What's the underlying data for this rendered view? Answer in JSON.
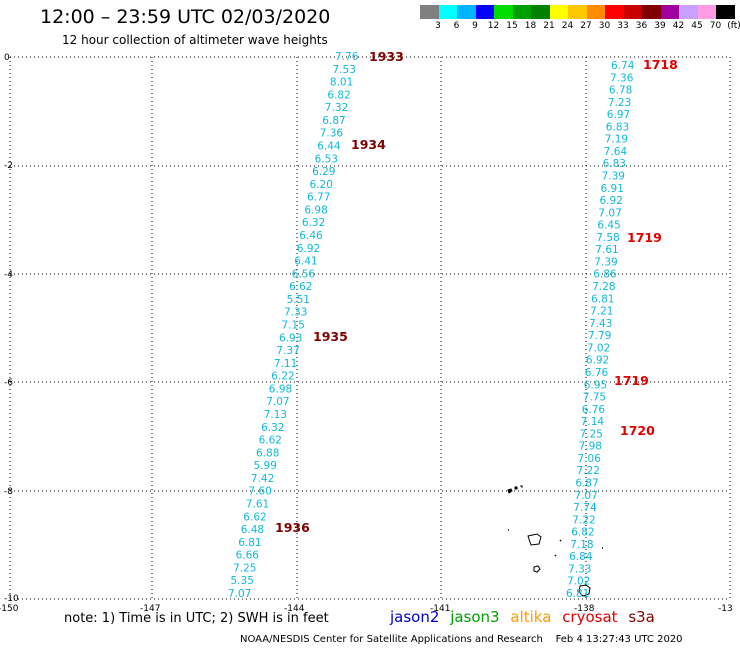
{
  "header": {
    "title": "12:00 – 23:59 UTC 02/03/2020",
    "subtitle": "12 hour collection of altimeter wave heights"
  },
  "scale": {
    "colors": [
      "#808080",
      "#00ffff",
      "#00b4ff",
      "#0000ff",
      "#00dc00",
      "#00a000",
      "#008000",
      "#ffff00",
      "#ffc800",
      "#ff8c00",
      "#ff0000",
      "#c80000",
      "#800000",
      "#a000a0",
      "#c8a0ff",
      "#ff9ce6",
      "#000000"
    ],
    "labels": [
      "3",
      "6",
      "9",
      "12",
      "15",
      "18",
      "21",
      "24",
      "27",
      "30",
      "33",
      "36",
      "39",
      "42",
      "45",
      "70",
      "(ft)"
    ]
  },
  "map_data": {
    "lon_labels": [
      "-150",
      "-147",
      "-144",
      "-141",
      "-138",
      "-13"
    ],
    "lat_labels": [
      "0",
      "-2",
      "-4",
      "-6",
      "-8",
      "-10"
    ],
    "track_west": [
      "7.76",
      "7.53",
      "8.01",
      "6.82",
      "7.32",
      "6.87",
      "7.36",
      "6.44",
      "6.53",
      "6.29",
      "6.20",
      "6.77",
      "6.98",
      "6.32",
      "6.46",
      "6.92",
      "6.41",
      "6.56",
      "6.62",
      "5.51",
      "7.33",
      "7.15",
      "6.93",
      "7.37",
      "7.11",
      "6.22",
      "6.98",
      "7.07",
      "7.13",
      "6.32",
      "6.62",
      "6.88",
      "5.99",
      "7.42",
      "7.60",
      "7.61",
      "6.62",
      "6.48",
      "6.81",
      "6.66",
      "7.25",
      "5.35",
      "7.07"
    ],
    "track_east": [
      "6.74",
      "7.36",
      "6.78",
      "7.23",
      "6.97",
      "6.83",
      "7.19",
      "7.64",
      "6.83",
      "7.39",
      "6.91",
      "6.92",
      "7.07",
      "6.45",
      "7.58",
      "7.61",
      "7.39",
      "6.86",
      "7.28",
      "6.81",
      "7.21",
      "7.43",
      "7.79",
      "7.02",
      "6.92",
      "6.76",
      "6.95",
      "7.75",
      "6.76",
      "7.14",
      "7.25",
      "7.98",
      "7.06",
      "7.22",
      "6.87",
      "7.07",
      "7.74",
      "7.22",
      "6.82",
      "7.18",
      "6.84",
      "7.33",
      "7.02",
      "6.81"
    ],
    "pass_west": [
      "1933",
      "1934",
      "1935",
      "1936"
    ],
    "pass_east": [
      "1718",
      "1719",
      "1719",
      "1720"
    ]
  },
  "footer": {
    "note": "note: 1) Time is in UTC; 2) SWH is in feet",
    "sat_jason2": "jason2",
    "sat_jason3": "jason3",
    "sat_altika": "altika",
    "sat_cryosat": "cryosat",
    "sat_s3a": "s3a",
    "credit": "NOAA/NESDIS Center for Satellite Applications and Research",
    "timestamp": "Feb  4 13:27:43 UTC 2020"
  }
}
